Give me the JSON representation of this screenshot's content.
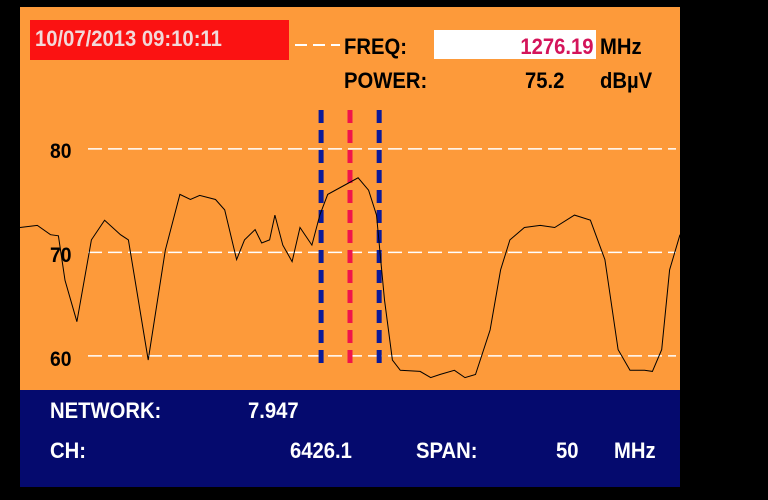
{
  "header": {
    "datetime": "10/07/2013 09:10:11",
    "freq_label": "FREQ:",
    "freq_value": "1276.19",
    "freq_unit": "MHz",
    "power_label": "POWER:",
    "power_value": "75.2",
    "power_unit": "dBµV"
  },
  "footer": {
    "network_label": "NETWORK:",
    "network_value": "7.947",
    "ch_label": "CH:",
    "ch_value": "6426.1",
    "span_label": "SPAN:",
    "span_value": "50",
    "span_unit": "MHz"
  },
  "colors": {
    "background": "#fd9a3a",
    "info_panel": "#050a6e",
    "date_box": "#fb1212",
    "center_marker": "#f0144b",
    "side_marker": "#0a1a9a",
    "trace": "#000000",
    "grid": "#ffffff"
  },
  "chart_data": {
    "type": "line",
    "xlim": [
      1251.19,
      1301.19
    ],
    "ylim": [
      56.7,
      93.7
    ],
    "yticks": [
      60,
      70,
      80
    ],
    "ytick_labels": [
      "60",
      "70",
      "80"
    ],
    "grid": true,
    "markers": {
      "center": 1276.19,
      "left": 1274.0,
      "right": 1278.4
    },
    "x": [
      1251.19,
      1252.5,
      1253.5,
      1254.1,
      1254.6,
      1255.5,
      1256.6,
      1257.6,
      1258.8,
      1259.4,
      1260.9,
      1262.2,
      1263.3,
      1264.1,
      1264.8,
      1266.0,
      1266.7,
      1267.6,
      1268.2,
      1269.0,
      1269.5,
      1270.1,
      1270.5,
      1271.1,
      1271.8,
      1272.4,
      1273.3,
      1273.9,
      1274.5,
      1275.8,
      1276.8,
      1277.6,
      1278.2,
      1278.8,
      1279.4,
      1280.0,
      1281.5,
      1282.3,
      1283.0,
      1284.1,
      1284.9,
      1285.7,
      1286.8,
      1287.6,
      1288.3,
      1289.4,
      1290.6,
      1291.7,
      1293.2,
      1294.4,
      1295.5,
      1296.5,
      1297.4,
      1298.5,
      1299.1,
      1299.8,
      1300.4,
      1301.19
    ],
    "y": [
      72.4,
      72.6,
      71.7,
      71.6,
      67.3,
      63.3,
      71.2,
      73.1,
      71.7,
      71.2,
      59.6,
      70.2,
      75.6,
      75.1,
      75.5,
      75.1,
      74.1,
      69.3,
      71.2,
      72.2,
      70.9,
      71.2,
      73.6,
      70.7,
      69.1,
      72.4,
      70.7,
      73.6,
      75.6,
      76.5,
      77.2,
      76.0,
      73.6,
      65.4,
      59.6,
      58.6,
      58.5,
      57.9,
      58.2,
      58.6,
      57.9,
      58.2,
      62.5,
      68.3,
      71.2,
      72.4,
      72.6,
      72.4,
      73.6,
      73.1,
      69.3,
      60.6,
      58.6,
      58.6,
      58.5,
      60.6,
      68.3,
      71.7
    ]
  }
}
